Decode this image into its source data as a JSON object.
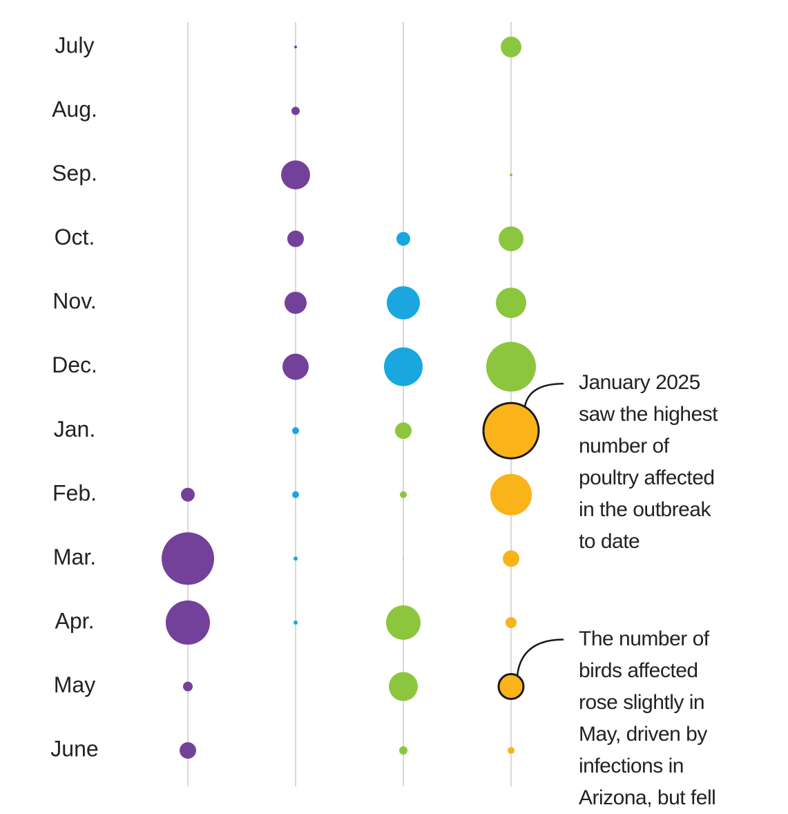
{
  "chart_data": {
    "type": "bubble",
    "categories": [
      "July",
      "Aug.",
      "Sep.",
      "Oct.",
      "Nov.",
      "Dec.",
      "Jan.",
      "Feb.",
      "Mar.",
      "Apr.",
      "May",
      "June"
    ],
    "series": [
      {
        "colors": [
          null,
          null,
          null,
          null,
          null,
          null,
          null,
          "#74419a",
          "#74419a",
          "#74419a",
          "#74419a",
          "#74419a"
        ],
        "values": [
          null,
          null,
          null,
          null,
          null,
          null,
          null,
          100,
          1444,
          1024,
          49,
          144
        ]
      },
      {
        "colors": [
          "#74419a",
          "#74419a",
          "#74419a",
          "#74419a",
          "#74419a",
          "#74419a",
          "#1aa7e0",
          "#1aa7e0",
          "#1aa7e0",
          "#1aa7e0",
          null,
          null
        ],
        "values": [
          4,
          36,
          441,
          144,
          256,
          361,
          25,
          25,
          9,
          9,
          null,
          null
        ]
      },
      {
        "colors": [
          null,
          null,
          null,
          "#1aa7e0",
          "#1aa7e0",
          "#1aa7e0",
          "#8cc63f",
          "#8cc63f",
          "#8cc63f",
          "#8cc63f",
          "#8cc63f",
          "#8cc63f"
        ],
        "values": [
          null,
          null,
          null,
          100,
          576,
          784,
          144,
          25,
          1,
          625,
          441,
          36
        ]
      },
      {
        "colors": [
          "#8cc63f",
          null,
          "#8cc63f",
          "#8cc63f",
          "#8cc63f",
          "#8cc63f",
          "#fbb31a",
          "#fbb31a",
          "#fbb31a",
          "#fbb31a",
          "#fbb31a",
          "#fbb31a"
        ],
        "values": [
          225,
          null,
          4,
          324,
          484,
          1296,
          1600,
          900,
          144,
          64,
          324,
          25
        ],
        "edge_colors": [
          null,
          null,
          null,
          null,
          null,
          null,
          "#1a1a1a",
          null,
          null,
          null,
          "#1a1a1a",
          null
        ],
        "annotations": [
          null,
          null,
          null,
          null,
          null,
          null,
          [
            "January 2025",
            "saw the highest",
            "number of",
            "poultry affected",
            "in the outbreak",
            "to date"
          ],
          null,
          null,
          null,
          [
            "The number of",
            "birds affected",
            "rose slightly in",
            "May, driven by",
            "infections in",
            "Arizona, but fell"
          ],
          null
        ]
      }
    ],
    "gridline_color": "#cccccc"
  }
}
